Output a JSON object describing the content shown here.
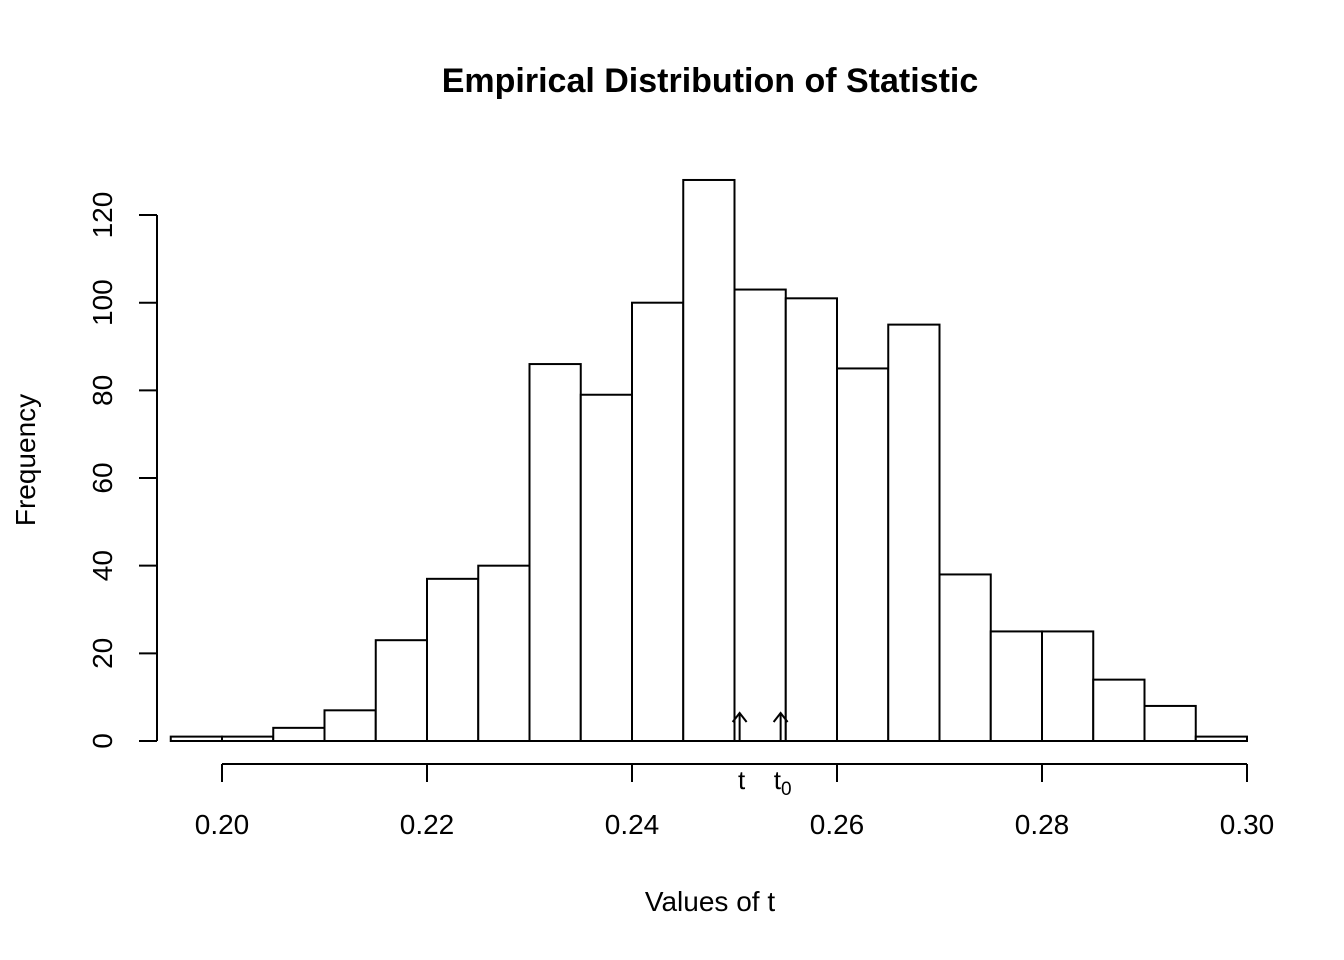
{
  "chart_data": {
    "type": "bar",
    "title": "Empirical Distribution of Statistic",
    "xlabel": "Values of t",
    "ylabel": "Frequency",
    "bin_edges": [
      0.195,
      0.2,
      0.205,
      0.21,
      0.215,
      0.22,
      0.225,
      0.23,
      0.235,
      0.24,
      0.245,
      0.25,
      0.255,
      0.26,
      0.265,
      0.27,
      0.275,
      0.28,
      0.285,
      0.29,
      0.295,
      0.3
    ],
    "values": [
      1,
      1,
      3,
      7,
      23,
      37,
      40,
      86,
      79,
      100,
      128,
      103,
      101,
      85,
      95,
      38,
      25,
      25,
      14,
      8,
      1
    ],
    "xlim": [
      0.2,
      0.3
    ],
    "ylim": [
      0,
      120
    ],
    "x_ticks": [
      "0.20",
      "0.22",
      "0.24",
      "0.26",
      "0.28",
      "0.30"
    ],
    "y_ticks": [
      "0",
      "20",
      "40",
      "60",
      "80",
      "100",
      "120"
    ],
    "markers": [
      {
        "label": "t",
        "subscript": "",
        "x": 0.2505
      },
      {
        "label": "t",
        "subscript": "0",
        "x": 0.2545
      }
    ]
  }
}
